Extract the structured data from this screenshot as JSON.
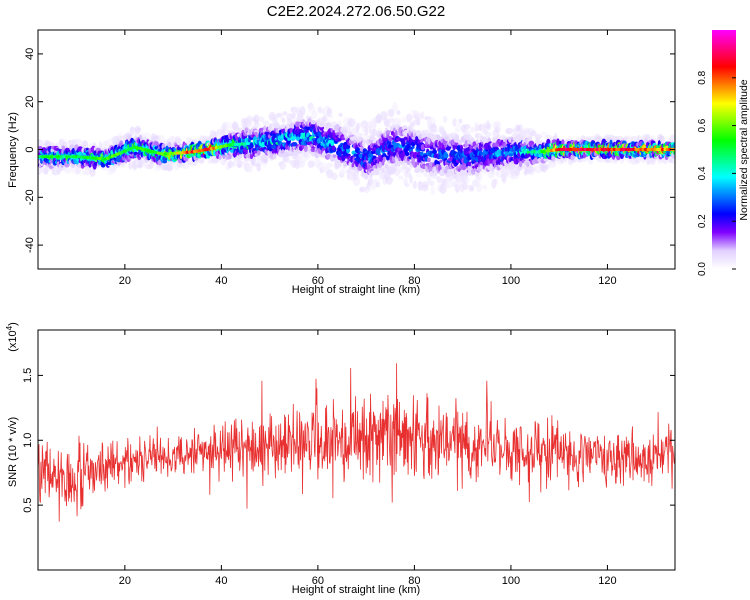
{
  "title": "C2E2.2024.272.06.50.G22",
  "chart_data": [
    {
      "type": "heatmap",
      "name": "spectrogram",
      "xlabel": "Height of straight line (km)",
      "ylabel": "Frequency (Hz)",
      "xlim": [
        2,
        134
      ],
      "ylim": [
        -50,
        50
      ],
      "x_ticks": [
        20,
        40,
        60,
        80,
        100,
        120
      ],
      "y_ticks": [
        -40,
        -20,
        0,
        20,
        40
      ],
      "colorbar": {
        "label": "Normalized spectral amplitude",
        "range": [
          0.0,
          1.0
        ],
        "ticks": [
          "0.0",
          "0.2",
          "0.4",
          "0.6",
          "0.8"
        ],
        "colormap": [
          "#ff00ff",
          "#ff0080",
          "#ff0000",
          "#ff8000",
          "#ffff00",
          "#80ff00",
          "#00ff00",
          "#00ff80",
          "#00ffff",
          "#0080ff",
          "#0000ff",
          "#8000ff",
          "#e0d0ff",
          "#ffffff"
        ]
      },
      "ridge": [
        {
          "x": 2,
          "f": -3,
          "spread": 4,
          "amp": 0.55
        },
        {
          "x": 10,
          "f": -3,
          "spread": 4,
          "amp": 0.5
        },
        {
          "x": 16,
          "f": -4,
          "spread": 4,
          "amp": 0.6
        },
        {
          "x": 22,
          "f": 1,
          "spread": 5,
          "amp": 0.55
        },
        {
          "x": 28,
          "f": -2,
          "spread": 4,
          "amp": 0.6
        },
        {
          "x": 34,
          "f": -1,
          "spread": 3,
          "amp": 0.85
        },
        {
          "x": 37,
          "f": 0,
          "spread": 3,
          "amp": 0.9
        },
        {
          "x": 42,
          "f": 2,
          "spread": 6,
          "amp": 0.5
        },
        {
          "x": 50,
          "f": 3,
          "spread": 7,
          "amp": 0.4
        },
        {
          "x": 58,
          "f": 6,
          "spread": 8,
          "amp": 0.4
        },
        {
          "x": 64,
          "f": 2,
          "spread": 9,
          "amp": 0.35
        },
        {
          "x": 70,
          "f": -4,
          "spread": 9,
          "amp": 0.3
        },
        {
          "x": 76,
          "f": 2,
          "spread": 10,
          "amp": 0.3
        },
        {
          "x": 84,
          "f": -2,
          "spread": 10,
          "amp": 0.3
        },
        {
          "x": 92,
          "f": -3,
          "spread": 9,
          "amp": 0.3
        },
        {
          "x": 100,
          "f": -1,
          "spread": 7,
          "amp": 0.35
        },
        {
          "x": 106,
          "f": -1,
          "spread": 5,
          "amp": 0.5
        },
        {
          "x": 110,
          "f": 0,
          "spread": 3,
          "amp": 0.9
        },
        {
          "x": 120,
          "f": 0,
          "spread": 3,
          "amp": 0.9
        },
        {
          "x": 128,
          "f": 0,
          "spread": 3,
          "amp": 0.85
        },
        {
          "x": 134,
          "f": 0,
          "spread": 3,
          "amp": 0.8
        }
      ]
    },
    {
      "type": "line",
      "name": "snr",
      "xlabel": "Height of straight line (km)",
      "ylabel": "SNR (10 * v/v)",
      "y_multiplier": "(x10",
      "y_multiplier_exp": "4",
      "multiplier_suffix": ")",
      "xlim": [
        2,
        134
      ],
      "ylim": [
        0,
        18500
      ],
      "x_ticks": [
        20,
        40,
        60,
        80,
        100,
        120
      ],
      "y_ticks": [
        5000,
        10000,
        15000
      ],
      "y_tick_labels": [
        "0.5",
        "1.0",
        "1.5"
      ],
      "color": "#e83030",
      "x": [
        2,
        4,
        6,
        8,
        10,
        12,
        14,
        16,
        18,
        20,
        22,
        24,
        26,
        28,
        30,
        32,
        34,
        36,
        38,
        40,
        42,
        44,
        46,
        48,
        50,
        52,
        54,
        56,
        58,
        60,
        62,
        64,
        66,
        68,
        70,
        72,
        74,
        76,
        78,
        80,
        82,
        84,
        86,
        88,
        90,
        92,
        94,
        96,
        98,
        100,
        102,
        104,
        106,
        108,
        110,
        112,
        114,
        116,
        118,
        120,
        122,
        124,
        126,
        128,
        130,
        132,
        134
      ],
      "mean": [
        8000,
        7500,
        7000,
        6800,
        7200,
        7500,
        7800,
        8000,
        8200,
        8400,
        8600,
        8700,
        8800,
        8800,
        8700,
        8800,
        8900,
        9000,
        9100,
        9200,
        9400,
        9500,
        9600,
        9700,
        9800,
        9900,
        9900,
        10000,
        10000,
        10000,
        10100,
        10000,
        10100,
        10200,
        10100,
        10000,
        10000,
        9900,
        10000,
        10100,
        10000,
        9900,
        9800,
        9800,
        9700,
        9600,
        9600,
        9500,
        9400,
        9300,
        9200,
        9100,
        9000,
        9000,
        8900,
        8900,
        8800,
        8800,
        8700,
        8700,
        8600,
        8600,
        8500,
        8600,
        8700,
        8800,
        8800
      ],
      "amplitude": [
        3500,
        4000,
        4500,
        4200,
        3800,
        3500,
        3200,
        3000,
        2800,
        2600,
        2500,
        2500,
        2500,
        2400,
        2400,
        2500,
        2600,
        2700,
        2900,
        3000,
        3200,
        3400,
        3600,
        3700,
        3800,
        3900,
        4000,
        4100,
        4200,
        4300,
        4400,
        4500,
        4500,
        4600,
        4600,
        4500,
        4500,
        4400,
        4400,
        4400,
        4300,
        4300,
        4200,
        4200,
        4100,
        4100,
        4000,
        4000,
        3900,
        3800,
        3700,
        3600,
        3500,
        3400,
        3300,
        3200,
        3200,
        3100,
        3100,
        3000,
        3100,
        3100,
        3000,
        3000,
        3000,
        2900,
        2900
      ]
    }
  ]
}
